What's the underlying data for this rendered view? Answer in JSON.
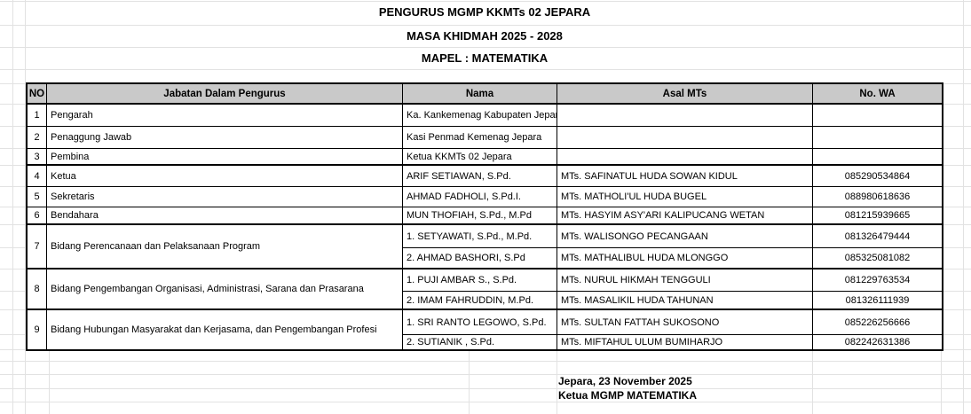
{
  "titles": {
    "line1": "PENGURUS MGMP KKMTs 02 JEPARA",
    "line2": "MASA KHIDMAH 2025 - 2028",
    "line3": "MAPEL : MATEMATIKA"
  },
  "table": {
    "headers": {
      "no": "NO",
      "jabatan": "Jabatan Dalam Pengurus",
      "nama": "Nama",
      "asal": "Asal MTs",
      "wa": "No. WA"
    },
    "rows": [
      {
        "no": "1",
        "jabatan": "Pengarah",
        "entries": [
          {
            "nama": "Ka. Kankemenag Kabupaten Jepara",
            "asal": "",
            "wa": ""
          }
        ]
      },
      {
        "no": "2",
        "jabatan": "Penaggung Jawab",
        "entries": [
          {
            "nama": "Kasi Penmad Kemenag Jepara",
            "asal": "",
            "wa": ""
          }
        ]
      },
      {
        "no": "3",
        "jabatan": "Pembina",
        "entries": [
          {
            "nama": "Ketua KKMTs 02 Jepara",
            "asal": "",
            "wa": ""
          }
        ]
      },
      {
        "no": "4",
        "jabatan": "Ketua",
        "entries": [
          {
            "nama": "ARIF SETIAWAN, S.Pd.",
            "asal": "MTs. SAFINATUL HUDA SOWAN KIDUL",
            "wa": "085290534864"
          }
        ]
      },
      {
        "no": "5",
        "jabatan": "Sekretaris",
        "entries": [
          {
            "nama": "AHMAD FADHOLI, S.Pd.I.",
            "asal": "MTs. MATHOLI'UL HUDA BUGEL",
            "wa": "088980618636"
          }
        ]
      },
      {
        "no": "6",
        "jabatan": "Bendahara",
        "entries": [
          {
            "nama": "MUN THOFIAH, S.Pd., M.Pd",
            "asal": "MTs. HASYIM ASY'ARI KALIPUCANG WETAN",
            "wa": "081215939665"
          }
        ]
      },
      {
        "no": "7",
        "jabatan": "Bidang Perencanaan dan Pelaksanaan Program",
        "entries": [
          {
            "nama": "1. SETYAWATI, S.Pd., M.Pd.",
            "asal": "MTs. WALISONGO PECANGAAN",
            "wa": "081326479444"
          },
          {
            "nama": "2. AHMAD BASHORI, S.Pd",
            "asal": "MTs. MATHALIBUL HUDA MLONGGO",
            "wa": "085325081082"
          }
        ]
      },
      {
        "no": "8",
        "jabatan": "Bidang Pengembangan Organisasi, Administrasi, Sarana dan Prasarana",
        "entries": [
          {
            "nama": "1. PUJI AMBAR S., S.Pd.",
            "asal": "MTs. NURUL HIKMAH TENGGULI",
            "wa": "081229763534"
          },
          {
            "nama": "2. IMAM FAHRUDDIN, M.Pd.",
            "asal": "MTs. MASALIKIL HUDA TAHUNAN",
            "wa": "081326111939"
          }
        ]
      },
      {
        "no": "9",
        "jabatan": "Bidang Hubungan Masyarakat dan Kerjasama, dan Pengembangan Profesi",
        "entries": [
          {
            "nama": "1. SRI RANTO LEGOWO, S.Pd.",
            "asal": "MTs. SULTAN FATTAH SUKOSONO",
            "wa": "085226256666"
          },
          {
            "nama": "2. SUTIANIK , S.Pd.",
            "asal": "MTs. MIFTAHUL ULUM BUMIHARJO",
            "wa": "082242631386"
          }
        ]
      }
    ]
  },
  "signature": {
    "line1": "Jepara, 23 November 2025",
    "line2": "Ketua MGMP MATEMATIKA"
  },
  "colors": {
    "header_bg": "#c9c9c9",
    "table_border": "#000000",
    "sheet_gridline": "#e2e2e2",
    "background": "#ffffff"
  }
}
